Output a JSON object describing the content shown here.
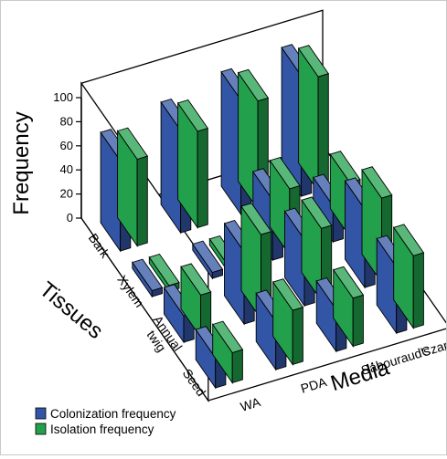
{
  "chart_data": {
    "type": "bar",
    "subtype": "3d-grouped-bar",
    "title": "",
    "ylabel": "Frequency",
    "xlabel": "Media",
    "zlabel": "Tissues",
    "ylim": [
      0,
      100
    ],
    "yticks": [
      0,
      20,
      40,
      60,
      80,
      100
    ],
    "media": [
      "WA",
      "PDA",
      "Sabouraud's",
      "Czapek's"
    ],
    "tissues": [
      "Bark",
      "Xylem",
      "Annual twig",
      "Seed"
    ],
    "tissue_label_lines": [
      [
        "Bark"
      ],
      [
        "Xylem"
      ],
      [
        "Annual",
        "twig"
      ],
      [
        "Seed"
      ]
    ],
    "series": [
      {
        "name": "Colonization frequency",
        "color": "#3355a6",
        "values": [
          [
            75,
            5,
            22,
            25
          ],
          [
            85,
            5,
            60,
            40
          ],
          [
            95,
            50,
            55,
            35
          ],
          [
            100,
            30,
            65,
            55
          ]
        ]
      },
      {
        "name": "Isolation frequency",
        "color": "#22a04c",
        "values": [
          [
            72,
            5,
            35,
            25
          ],
          [
            80,
            5,
            70,
            45
          ],
          [
            90,
            55,
            60,
            40
          ],
          [
            95,
            45,
            70,
            60
          ]
        ]
      }
    ],
    "legend": {
      "position": "bottom-left",
      "items": [
        "Colonization frequency",
        "Isolation frequency"
      ]
    },
    "grid": false
  }
}
